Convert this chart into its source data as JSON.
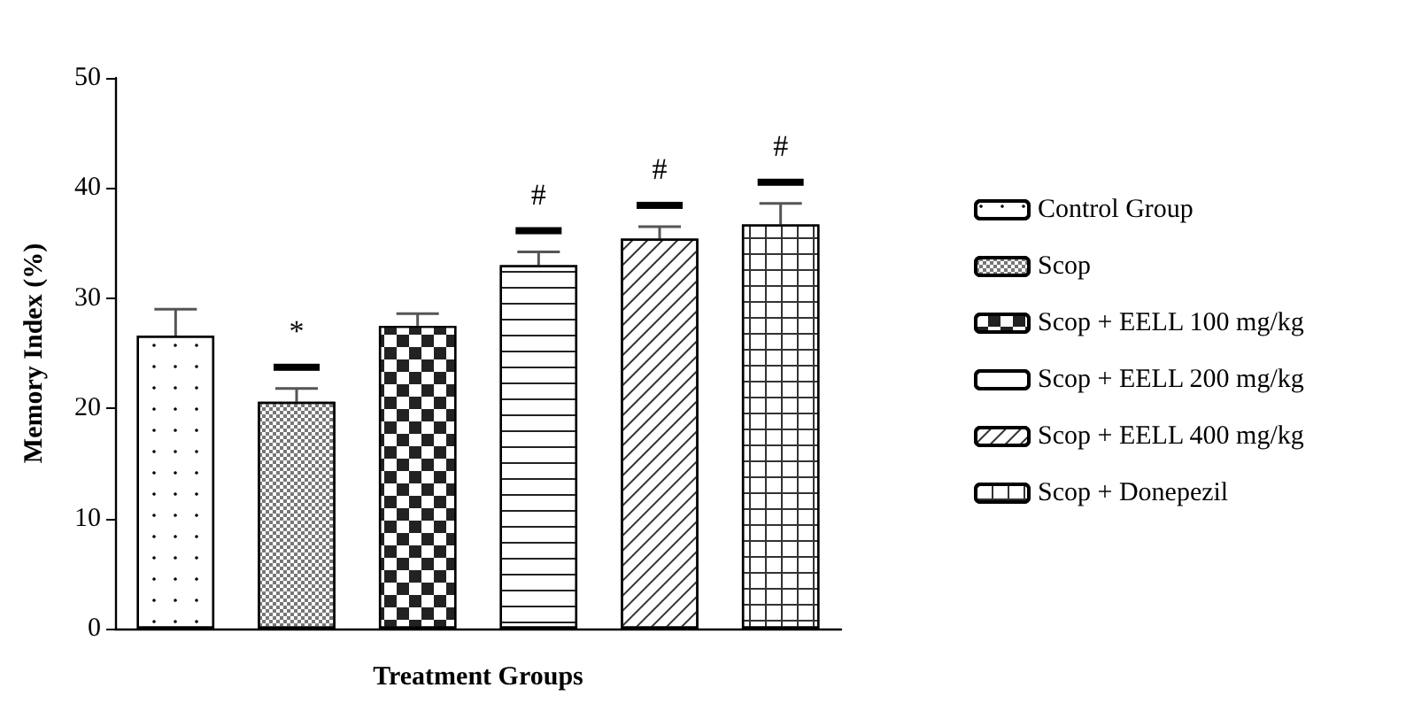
{
  "chart_data": {
    "type": "bar",
    "xlabel": "Treatment Groups",
    "ylabel": "Memory Index (%)",
    "categories": [
      null,
      null,
      null,
      null,
      null,
      null
    ],
    "series": [
      {
        "name": "Control Group",
        "color": "#ffffff",
        "values": [
          26.6,
          null,
          null,
          null,
          null,
          null
        ],
        "errors": [
          [
            26.6,
            29.0
          ],
          null,
          null,
          null,
          null,
          null
        ]
      },
      {
        "name": "Scop",
        "color": "#ffffff",
        "values": [
          null,
          20.6,
          null,
          null,
          null,
          null
        ],
        "errors": [
          null,
          [
            20.6,
            21.8
          ],
          null,
          null,
          null,
          null
        ],
        "value_labels": [
          null,
          "*",
          null,
          null,
          null,
          null
        ]
      },
      {
        "name": "Scop + EELL 100 mg/kg",
        "color": "#ffffff",
        "values": [
          null,
          null,
          27.5,
          null,
          null,
          null
        ],
        "errors": [
          null,
          null,
          [
            27.5,
            28.6
          ],
          null,
          null,
          null
        ]
      },
      {
        "name": "Scop + EELL 200 mg/kg",
        "color": "#ffffff",
        "values": [
          null,
          null,
          null,
          33.0,
          null,
          null
        ],
        "errors": [
          null,
          null,
          null,
          [
            33.0,
            34.2
          ],
          null,
          null
        ],
        "value_labels": [
          null,
          null,
          null,
          "#",
          null,
          null
        ]
      },
      {
        "name": "Scop + EELL 400 mg/kg",
        "color": "#ffffff",
        "values": [
          null,
          null,
          null,
          null,
          35.4,
          null
        ],
        "errors": [
          null,
          null,
          null,
          null,
          [
            35.4,
            36.5
          ],
          null
        ],
        "value_labels": [
          null,
          null,
          null,
          null,
          "#",
          null
        ]
      },
      {
        "name": "Scop + Donepezil",
        "color": "#ffffff",
        "values": [
          null,
          null,
          null,
          null,
          null,
          36.7
        ],
        "errors": [
          null,
          null,
          null,
          null,
          null,
          [
            36.7,
            38.6
          ]
        ],
        "value_labels": [
          null,
          null,
          null,
          null,
          null,
          "#"
        ]
      }
    ],
    "ylim": [
      0,
      50
    ],
    "yticks": [
      0,
      10,
      20,
      30,
      40,
      50
    ],
    "grid": false,
    "legend": "right"
  }
}
